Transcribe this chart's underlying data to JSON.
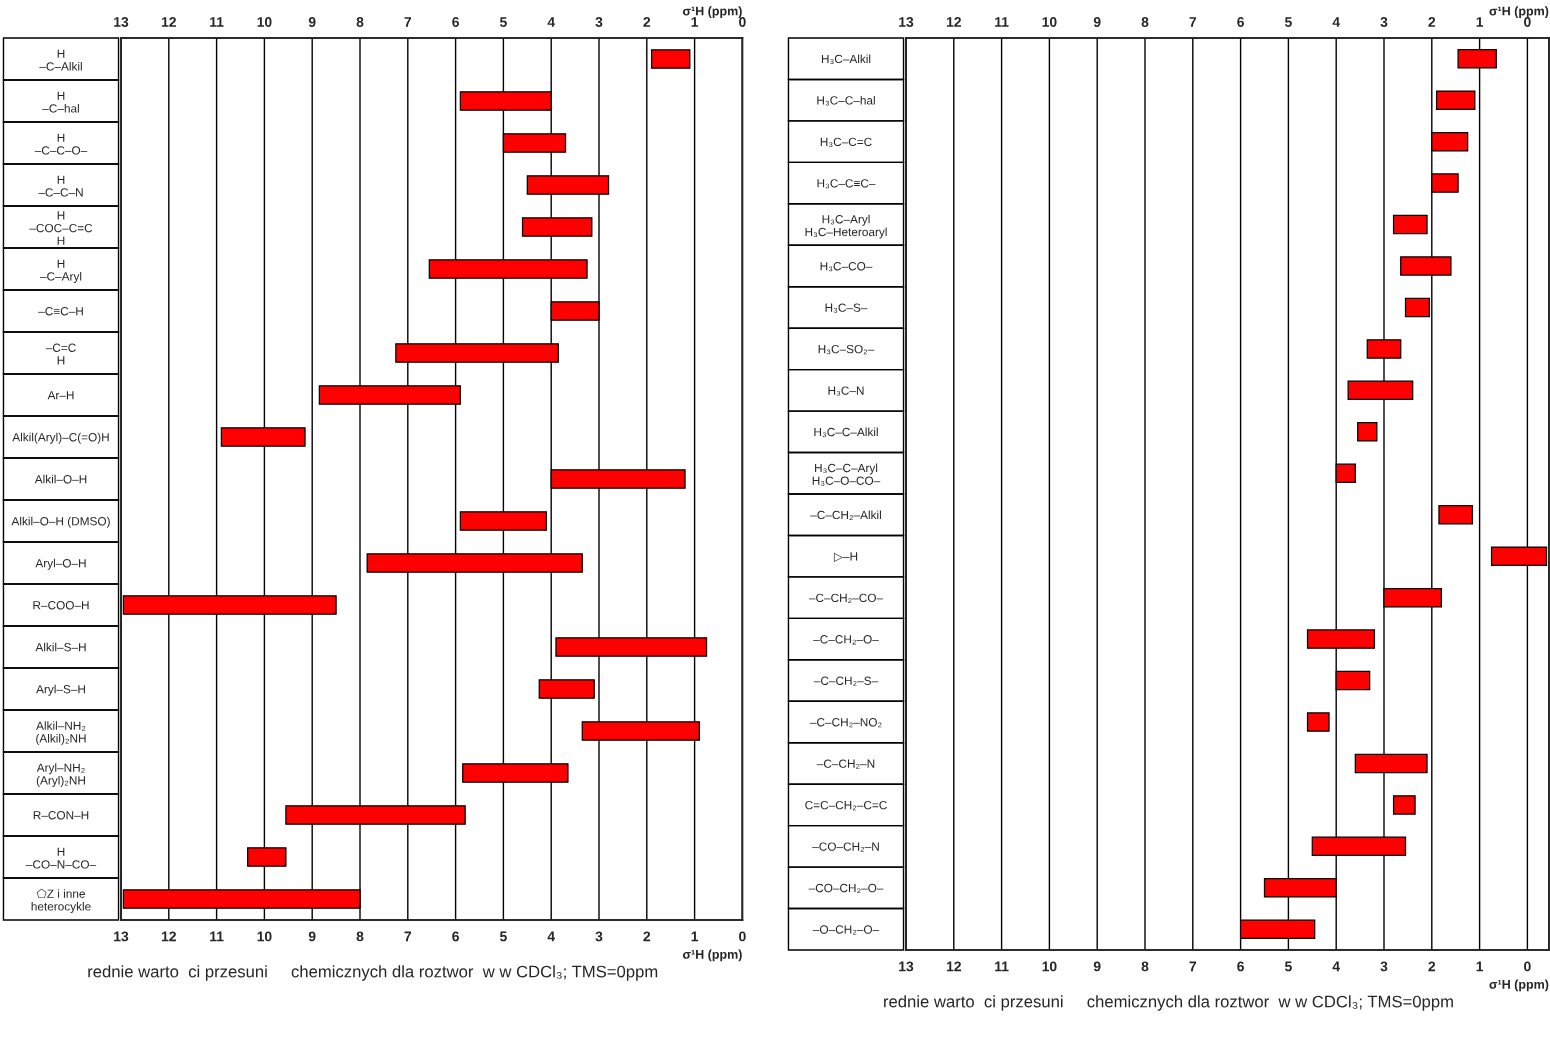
{
  "chart_data": [
    {
      "type": "bar",
      "orientation": "horizontal",
      "color": "#ff0000",
      "grid": true,
      "categories": [
        "H\n–C–Alkil",
        "H\n–C–hal",
        "H\n–C–C–O–",
        "H\n–C–C–N",
        "H\n–COC–C=C\nH",
        "H\n–C–Aryl",
        "–C≡C–H",
        "–C=C\nH",
        "Ar–H",
        "Alkil(Aryl)–C(=O)H",
        "Alkil–O–H",
        "Alkil–O–H (DMSO)",
        "Aryl–O–H",
        "R–COO–H",
        "Alkil–S–H",
        "Aryl–S–H",
        "Alkil–NH₂\n(Alkil)₂NH",
        "Aryl–NH₂\n(Aryl)₂NH",
        "R–CON–H",
        "H\n–CO–N–CO–",
        "⬠Z i inne\nheterocykle"
      ],
      "base": [
        1.1,
        4.0,
        3.7,
        2.8,
        3.15,
        3.25,
        3.0,
        3.85,
        5.9,
        9.15,
        1.2,
        4.1,
        3.35,
        8.5,
        0.75,
        3.1,
        0.9,
        3.65,
        5.8,
        9.55,
        8.0
      ],
      "values": [
        0.8,
        1.9,
        1.3,
        1.7,
        1.45,
        3.3,
        1.0,
        3.4,
        2.95,
        1.75,
        2.8,
        1.8,
        4.5,
        4.45,
        3.15,
        1.15,
        2.45,
        2.2,
        3.75,
        0.8,
        4.95
      ],
      "xlim": [
        13,
        0
      ],
      "xticks": [
        13,
        12,
        11,
        10,
        9,
        8,
        7,
        6,
        5,
        4,
        3,
        2,
        1,
        0
      ],
      "x2lim": [
        13,
        0
      ],
      "x2ticks": [
        13,
        12,
        11,
        10,
        9,
        8,
        7,
        6,
        5,
        4,
        3,
        2,
        1,
        0
      ],
      "xlabel": "σ¹H (ppm)",
      "x2label": "σ¹H (ppm)",
      "annotations": [
        "rednie warto  ci przesuni     chemicznych dla roztwor  w w CDCl₃; TMS=0ppm"
      ]
    },
    {
      "type": "bar",
      "orientation": "horizontal",
      "color": "#ff0000",
      "grid": true,
      "categories": [
        "H₃C–Alkil",
        "H₃C–C–hal",
        "H₃C–C=C",
        "H₃C–C≡C–",
        "H₃C–Aryl\nH₃C–Heteroaryl",
        "H₃C–CO–",
        "H₃C–S–",
        "H₃C–SO₂–",
        "H₃C–N",
        "H₃C–C–Alkil",
        "H₃C–C–Aryl\nH₃C–O–CO–",
        "–C–CH₂–Alkil",
        "▷–H",
        "–C–CH₂–CO–",
        "–C–CH₂–O–",
        "–C–CH₂–S–",
        "–C–CH₂–NO₂",
        "–C–CH₂–N",
        "C=C–CH₂–C=C",
        "–CO–CH₂–N",
        "–CO–CH₂–O–",
        "–O–CH₂–O–"
      ],
      "base": [
        0.65,
        1.1,
        1.25,
        1.45,
        2.1,
        1.6,
        2.05,
        2.65,
        2.4,
        3.15,
        3.6,
        1.15,
        -0.4,
        1.8,
        3.2,
        3.3,
        4.15,
        2.1,
        2.35,
        2.55,
        4.0,
        4.45
      ],
      "values": [
        0.8,
        0.8,
        0.75,
        0.55,
        0.7,
        1.05,
        0.5,
        0.7,
        1.35,
        0.4,
        0.4,
        0.7,
        1.15,
        1.2,
        1.4,
        0.7,
        0.45,
        1.5,
        0.45,
        1.95,
        1.5,
        1.55
      ],
      "xlim": [
        13,
        -0.45
      ],
      "xticks": [
        13,
        12,
        11,
        10,
        9,
        8,
        7,
        6,
        5,
        4,
        3,
        2,
        1,
        0
      ],
      "x2lim": [
        13,
        -0.45
      ],
      "x2ticks": [
        13,
        12,
        11,
        10,
        9,
        8,
        7,
        6,
        5,
        4,
        3,
        2,
        1,
        0
      ],
      "xlabel": "σ¹H (ppm)",
      "x2label": "σ¹H (ppm)",
      "annotations": [
        "rednie warto  ci przesuni     chemicznych dla roztwor  w w CDCl₃; TMS=0ppm"
      ]
    }
  ]
}
